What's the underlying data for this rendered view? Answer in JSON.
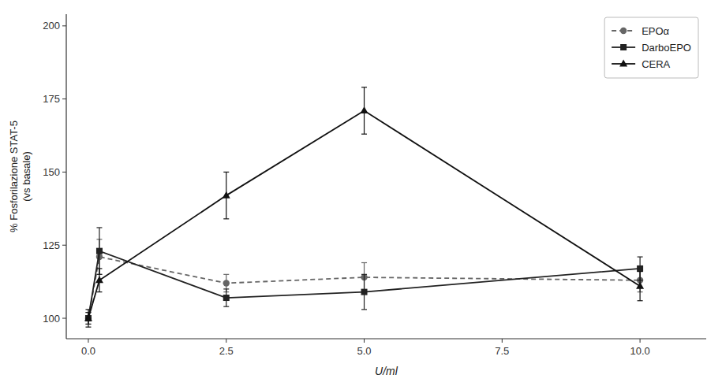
{
  "chart_data": {
    "type": "line",
    "x": [
      0.0,
      0.2,
      2.5,
      5.0,
      10.0
    ],
    "series": [
      {
        "name": "EPOα",
        "color": "#666666",
        "marker": "circle",
        "line_style": "dashed",
        "values": [
          100,
          121,
          112,
          114,
          113
        ],
        "errors": [
          2,
          6,
          3,
          5,
          4
        ]
      },
      {
        "name": "DarboEPO",
        "color": "#222222",
        "marker": "square",
        "line_style": "solid",
        "values": [
          100,
          123,
          107,
          109,
          117
        ],
        "errors": [
          2,
          8,
          3,
          6,
          4
        ]
      },
      {
        "name": "CERA",
        "color": "#111111",
        "marker": "triangle",
        "line_style": "solid",
        "values": [
          100,
          113,
          142,
          171,
          111
        ],
        "errors": [
          3,
          4,
          8,
          8,
          5
        ]
      }
    ],
    "x_label": "U/ml",
    "y_label": "% Fosforilazione STAT-5\n(vs basale)",
    "xlim": [
      -0.4,
      11.2
    ],
    "ylim": [
      93,
      204
    ],
    "xticks": [
      {
        "value": 0.0,
        "label": "0.0"
      },
      2.5,
      {
        "value": 5.0,
        "label": "5.0"
      },
      7.5,
      {
        "value": 10.0,
        "label": "10.0"
      }
    ],
    "yticks": [
      100,
      125,
      150,
      175,
      200
    ],
    "legend": "upper right",
    "grid": false
  }
}
